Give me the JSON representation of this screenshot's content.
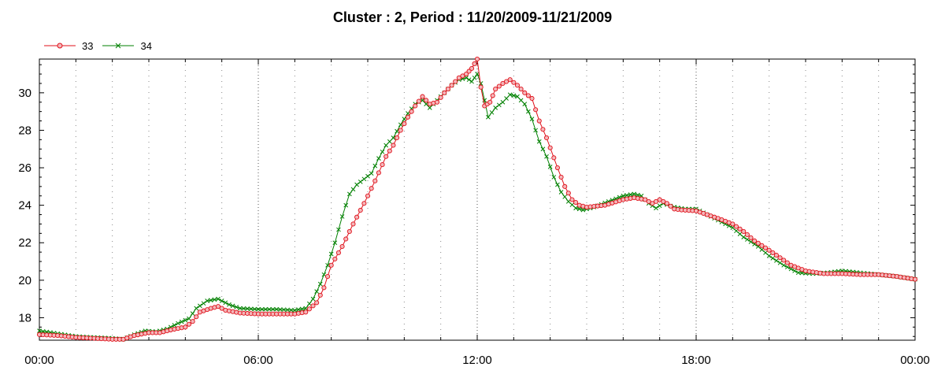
{
  "chart_data": {
    "type": "line",
    "title": "Cluster : 2, Period : 11/20/2009-11/21/2009",
    "xlabel": "",
    "ylabel": "",
    "x_tick_labels": [
      "00:00",
      "06:00",
      "12:00",
      "18:00",
      "00:00"
    ],
    "x_ticks_hours": [
      0,
      6,
      12,
      18,
      24
    ],
    "y_ticks": [
      18,
      20,
      22,
      24,
      26,
      28,
      30
    ],
    "xlim_hours": [
      0,
      24
    ],
    "ylim": [
      16.8,
      31.8
    ],
    "grid": "dotted vertical",
    "legend_position": "top-left",
    "series": [
      {
        "name": "33",
        "color": "#e0101a",
        "marker": "circle",
        "points": [
          [
            0,
            17.1
          ],
          [
            0.5,
            17.05
          ],
          [
            1,
            16.95
          ],
          [
            1.5,
            16.9
          ],
          [
            2,
            16.85
          ],
          [
            2.3,
            16.85
          ],
          [
            2.6,
            17.05
          ],
          [
            3,
            17.2
          ],
          [
            3.3,
            17.2
          ],
          [
            3.6,
            17.35
          ],
          [
            4,
            17.5
          ],
          [
            4.2,
            17.8
          ],
          [
            4.4,
            18.3
          ],
          [
            4.7,
            18.5
          ],
          [
            4.9,
            18.6
          ],
          [
            5.1,
            18.4
          ],
          [
            5.5,
            18.25
          ],
          [
            6,
            18.2
          ],
          [
            6.5,
            18.2
          ],
          [
            7,
            18.2
          ],
          [
            7.3,
            18.3
          ],
          [
            7.6,
            18.8
          ],
          [
            7.8,
            19.6
          ],
          [
            8,
            20.8
          ],
          [
            8.3,
            21.8
          ],
          [
            8.6,
            23
          ],
          [
            8.9,
            24.1
          ],
          [
            9.2,
            25.3
          ],
          [
            9.5,
            26.6
          ],
          [
            9.7,
            27.2
          ],
          [
            9.9,
            28
          ],
          [
            10.1,
            28.7
          ],
          [
            10.3,
            29.3
          ],
          [
            10.5,
            29.8
          ],
          [
            10.7,
            29.4
          ],
          [
            10.9,
            29.5
          ],
          [
            11.1,
            30
          ],
          [
            11.3,
            30.4
          ],
          [
            11.5,
            30.8
          ],
          [
            11.7,
            31
          ],
          [
            11.85,
            31.3
          ],
          [
            12,
            31.8
          ],
          [
            12.1,
            30.3
          ],
          [
            12.2,
            29.3
          ],
          [
            12.35,
            29.5
          ],
          [
            12.5,
            30.2
          ],
          [
            12.7,
            30.5
          ],
          [
            12.9,
            30.7
          ],
          [
            13.1,
            30.4
          ],
          [
            13.3,
            30
          ],
          [
            13.5,
            29.7
          ],
          [
            13.7,
            28.5
          ],
          [
            13.9,
            27.6
          ],
          [
            14.2,
            26
          ],
          [
            14.4,
            25
          ],
          [
            14.6,
            24.3
          ],
          [
            14.8,
            24
          ],
          [
            15,
            23.9
          ],
          [
            15.5,
            24
          ],
          [
            16,
            24.3
          ],
          [
            16.3,
            24.4
          ],
          [
            16.6,
            24.3
          ],
          [
            16.8,
            24.1
          ],
          [
            17,
            24.3
          ],
          [
            17.2,
            24.1
          ],
          [
            17.4,
            23.8
          ],
          [
            17.6,
            23.75
          ],
          [
            18,
            23.7
          ],
          [
            18.3,
            23.5
          ],
          [
            18.6,
            23.3
          ],
          [
            19,
            23
          ],
          [
            19.3,
            22.6
          ],
          [
            19.6,
            22.1
          ],
          [
            20,
            21.6
          ],
          [
            20.3,
            21.2
          ],
          [
            20.6,
            20.8
          ],
          [
            21,
            20.5
          ],
          [
            21.5,
            20.35
          ],
          [
            22,
            20.35
          ],
          [
            22.5,
            20.3
          ],
          [
            23,
            20.3
          ],
          [
            23.5,
            20.2
          ],
          [
            24,
            20.05
          ]
        ]
      },
      {
        "name": "34",
        "color": "#008000",
        "marker": "x",
        "points": [
          [
            0,
            17.3
          ],
          [
            0.5,
            17.15
          ],
          [
            1,
            17
          ],
          [
            1.5,
            16.95
          ],
          [
            2,
            16.9
          ],
          [
            2.3,
            16.85
          ],
          [
            2.6,
            17.1
          ],
          [
            2.9,
            17.3
          ],
          [
            3.2,
            17.25
          ],
          [
            3.5,
            17.4
          ],
          [
            3.8,
            17.7
          ],
          [
            4.1,
            17.95
          ],
          [
            4.3,
            18.5
          ],
          [
            4.6,
            18.9
          ],
          [
            4.9,
            19
          ],
          [
            5.2,
            18.7
          ],
          [
            5.5,
            18.5
          ],
          [
            6,
            18.45
          ],
          [
            6.5,
            18.45
          ],
          [
            7,
            18.4
          ],
          [
            7.3,
            18.5
          ],
          [
            7.5,
            19
          ],
          [
            7.7,
            19.8
          ],
          [
            7.9,
            20.8
          ],
          [
            8.1,
            22
          ],
          [
            8.3,
            23.4
          ],
          [
            8.5,
            24.6
          ],
          [
            8.7,
            25.1
          ],
          [
            8.9,
            25.4
          ],
          [
            9.1,
            25.7
          ],
          [
            9.3,
            26.5
          ],
          [
            9.5,
            27.2
          ],
          [
            9.7,
            27.6
          ],
          [
            9.9,
            28.3
          ],
          [
            10.1,
            28.9
          ],
          [
            10.3,
            29.4
          ],
          [
            10.5,
            29.6
          ],
          [
            10.7,
            29.2
          ],
          [
            10.9,
            29.6
          ],
          [
            11.1,
            30
          ],
          [
            11.3,
            30.4
          ],
          [
            11.5,
            30.7
          ],
          [
            11.7,
            30.8
          ],
          [
            11.85,
            30.6
          ],
          [
            12,
            31
          ],
          [
            12.1,
            30.5
          ],
          [
            12.3,
            28.7
          ],
          [
            12.5,
            29.2
          ],
          [
            12.7,
            29.5
          ],
          [
            12.9,
            29.9
          ],
          [
            13.1,
            29.8
          ],
          [
            13.3,
            29.4
          ],
          [
            13.5,
            28.6
          ],
          [
            13.7,
            27.4
          ],
          [
            13.9,
            26.6
          ],
          [
            14.1,
            25.5
          ],
          [
            14.3,
            24.7
          ],
          [
            14.5,
            24.2
          ],
          [
            14.7,
            23.85
          ],
          [
            14.9,
            23.75
          ],
          [
            15.2,
            23.9
          ],
          [
            15.6,
            24.2
          ],
          [
            16,
            24.5
          ],
          [
            16.3,
            24.6
          ],
          [
            16.5,
            24.5
          ],
          [
            16.7,
            24.1
          ],
          [
            16.9,
            23.85
          ],
          [
            17.1,
            24.1
          ],
          [
            17.4,
            23.9
          ],
          [
            17.7,
            23.8
          ],
          [
            18,
            23.8
          ],
          [
            18.3,
            23.5
          ],
          [
            18.6,
            23.2
          ],
          [
            19,
            22.8
          ],
          [
            19.3,
            22.3
          ],
          [
            19.7,
            21.8
          ],
          [
            20,
            21.3
          ],
          [
            20.4,
            20.8
          ],
          [
            20.8,
            20.4
          ],
          [
            21.2,
            20.35
          ],
          [
            21.6,
            20.4
          ],
          [
            22,
            20.5
          ],
          [
            22.5,
            20.4
          ],
          [
            23,
            20.3
          ],
          [
            23.5,
            20.2
          ],
          [
            24,
            20.05
          ]
        ]
      }
    ]
  }
}
